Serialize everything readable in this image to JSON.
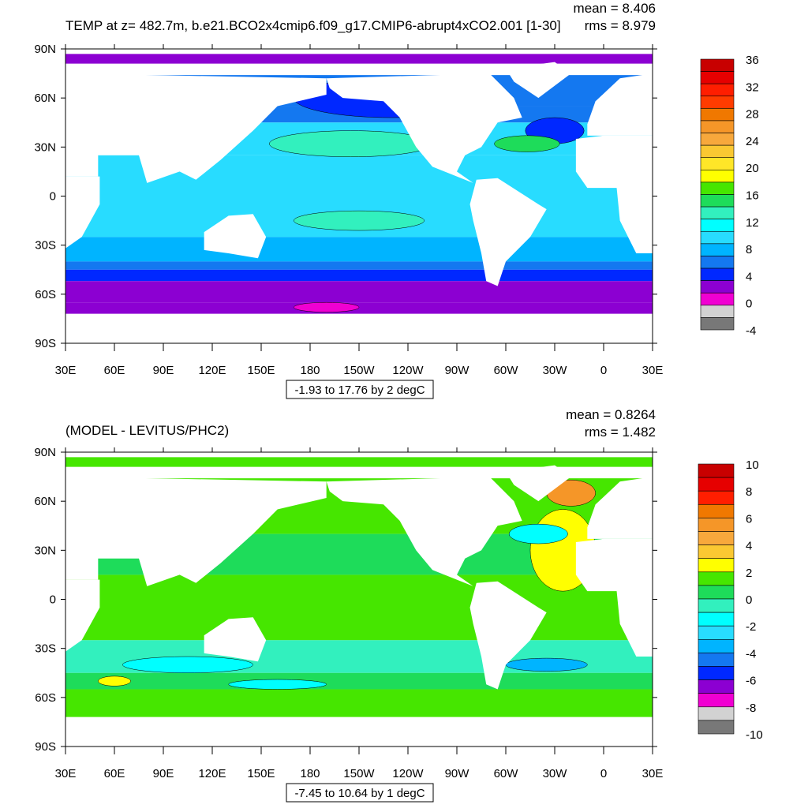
{
  "panels": [
    {
      "title": "TEMP at z= 482.7m, b.e21.BCO2x4cmip6.f09_g17.CMIP6-abrupt4xCO2.001 [1-30]",
      "mean": "mean = 8.406",
      "rms": "rms = 8.979",
      "subtitle": "-1.93 to 17.76 by 2 degC",
      "lat_labels": [
        "90N",
        "60N",
        "30N",
        "0",
        "30S",
        "60S",
        "90S"
      ],
      "lon_labels": [
        "30E",
        "60E",
        "90E",
        "120E",
        "150E",
        "180",
        "150W",
        "120W",
        "90W",
        "60W",
        "30W",
        "0",
        "30E"
      ],
      "colorbar": {
        "labels": [
          "36",
          "32",
          "28",
          "24",
          "20",
          "16",
          "12",
          "8",
          "4",
          "0",
          "-4"
        ],
        "colors": [
          "#c80000",
          "#e60000",
          "#ff1e00",
          "#ff3c00",
          "#f07800",
          "#f59628",
          "#f7a83c",
          "#fac832",
          "#ffe628",
          "#ffff00",
          "#46e600",
          "#1edc5a",
          "#32f0be",
          "#00ffff",
          "#28dcff",
          "#00b4ff",
          "#1478f0",
          "#0028ff",
          "#8c00d2",
          "#f000d2",
          "#d2d2d2",
          "#787878"
        ]
      }
    },
    {
      "title": "(MODEL - LEVITUS/PHC2)",
      "mean": "mean = 0.8264",
      "rms": "rms = 1.482",
      "subtitle": "-7.45 to 10.64 by 1 degC",
      "lat_labels": [
        "90N",
        "60N",
        "30N",
        "0",
        "30S",
        "60S",
        "90S"
      ],
      "lon_labels": [
        "30E",
        "60E",
        "90E",
        "120E",
        "150E",
        "180",
        "150W",
        "120W",
        "90W",
        "60W",
        "30W",
        "0",
        "30E"
      ],
      "colorbar": {
        "labels": [
          "10",
          "8",
          "6",
          "4",
          "2",
          "0",
          "-2",
          "-4",
          "-6",
          "-8",
          "-10"
        ],
        "colors": [
          "#c80000",
          "#e60000",
          "#ff1e00",
          "#f07800",
          "#f59628",
          "#f7a83c",
          "#fac832",
          "#ffff00",
          "#46e600",
          "#1edc5a",
          "#32f0be",
          "#00ffff",
          "#28dcff",
          "#00b4ff",
          "#1478f0",
          "#0028ff",
          "#8c00d2",
          "#f000d2",
          "#d2d2d2",
          "#787878"
        ]
      }
    }
  ]
}
